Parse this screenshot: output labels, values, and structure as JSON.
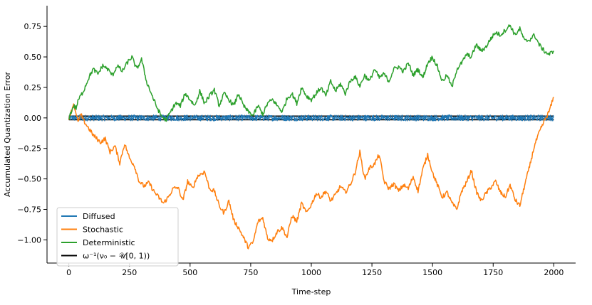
{
  "chart_data": {
    "type": "line",
    "title": "",
    "xlabel": "Time-step",
    "ylabel": "Accumulated Quantization Error",
    "xlim": [
      -90,
      2090
    ],
    "ylim": [
      -1.19,
      0.92
    ],
    "xticks": [
      0,
      250,
      500,
      750,
      1000,
      1250,
      1500,
      1750,
      2000
    ],
    "xtick_labels": [
      "0",
      "250",
      "500",
      "750",
      "1000",
      "1250",
      "1500",
      "1750",
      "2000"
    ],
    "yticks": [
      -1.0,
      -0.75,
      -0.5,
      -0.25,
      0.0,
      0.25,
      0.5,
      0.75
    ],
    "ytick_labels": [
      "−1.00",
      "−0.75",
      "−0.50",
      "−0.25",
      "0.00",
      "0.25",
      "0.50",
      "0.75"
    ],
    "grid": false,
    "legend_position": "lower-left",
    "band_bounds": [
      -0.015,
      0.015
    ],
    "series": [
      {
        "name": "Diffused",
        "color": "#1f77b4",
        "style": "noise-band",
        "x": [
          0,
          2000
        ],
        "amplitude": 0.025
      },
      {
        "name": "Stochastic",
        "color": "#ff7f0e",
        "style": "line",
        "x": [
          0,
          10,
          20,
          30,
          40,
          50,
          60,
          80,
          100,
          130,
          150,
          170,
          190,
          210,
          230,
          250,
          270,
          290,
          310,
          330,
          350,
          370,
          390,
          410,
          430,
          450,
          470,
          490,
          510,
          530,
          560,
          580,
          600,
          620,
          640,
          660,
          680,
          700,
          720,
          740,
          760,
          780,
          800,
          820,
          840,
          860,
          880,
          900,
          920,
          940,
          960,
          980,
          1000,
          1020,
          1040,
          1060,
          1080,
          1100,
          1120,
          1140,
          1160,
          1180,
          1200,
          1220,
          1240,
          1260,
          1280,
          1300,
          1320,
          1340,
          1360,
          1380,
          1400,
          1420,
          1440,
          1460,
          1480,
          1500,
          1520,
          1540,
          1560,
          1580,
          1600,
          1620,
          1640,
          1660,
          1680,
          1700,
          1720,
          1740,
          1760,
          1780,
          1800,
          1820,
          1840,
          1860,
          1880,
          1900,
          1920,
          1940,
          1960,
          1980,
          2000
        ],
        "y": [
          0.0,
          0.05,
          0.12,
          0.02,
          -0.03,
          0.03,
          -0.02,
          -0.08,
          -0.14,
          -0.2,
          -0.17,
          -0.28,
          -0.23,
          -0.37,
          -0.21,
          -0.33,
          -0.39,
          -0.52,
          -0.56,
          -0.53,
          -0.6,
          -0.65,
          -0.7,
          -0.65,
          -0.58,
          -0.57,
          -0.68,
          -0.52,
          -0.58,
          -0.48,
          -0.44,
          -0.58,
          -0.6,
          -0.72,
          -0.78,
          -0.68,
          -0.84,
          -0.9,
          -0.98,
          -1.06,
          -1.02,
          -0.85,
          -0.82,
          -0.99,
          -1.0,
          -0.93,
          -0.9,
          -0.98,
          -0.8,
          -0.85,
          -0.7,
          -0.78,
          -0.71,
          -0.62,
          -0.65,
          -0.6,
          -0.68,
          -0.63,
          -0.56,
          -0.61,
          -0.55,
          -0.45,
          -0.28,
          -0.5,
          -0.41,
          -0.38,
          -0.3,
          -0.52,
          -0.58,
          -0.54,
          -0.6,
          -0.55,
          -0.58,
          -0.48,
          -0.6,
          -0.42,
          -0.3,
          -0.45,
          -0.55,
          -0.65,
          -0.61,
          -0.7,
          -0.75,
          -0.6,
          -0.53,
          -0.43,
          -0.6,
          -0.68,
          -0.62,
          -0.57,
          -0.52,
          -0.61,
          -0.65,
          -0.55,
          -0.67,
          -0.72,
          -0.55,
          -0.4,
          -0.23,
          -0.12,
          -0.03,
          0.05,
          0.17
        ]
      },
      {
        "name": "Deterministic",
        "color": "#2ca02c",
        "style": "line",
        "x": [
          0,
          10,
          20,
          30,
          40,
          60,
          80,
          100,
          120,
          140,
          160,
          180,
          200,
          220,
          240,
          260,
          280,
          300,
          320,
          340,
          360,
          380,
          400,
          420,
          440,
          460,
          480,
          500,
          520,
          540,
          560,
          580,
          600,
          620,
          640,
          660,
          680,
          700,
          720,
          740,
          760,
          780,
          800,
          820,
          840,
          860,
          880,
          900,
          920,
          940,
          960,
          980,
          1000,
          1020,
          1040,
          1060,
          1080,
          1100,
          1120,
          1140,
          1160,
          1180,
          1200,
          1220,
          1240,
          1260,
          1280,
          1300,
          1320,
          1340,
          1360,
          1380,
          1400,
          1420,
          1440,
          1460,
          1480,
          1500,
          1520,
          1540,
          1560,
          1580,
          1600,
          1620,
          1640,
          1660,
          1680,
          1700,
          1720,
          1740,
          1760,
          1780,
          1800,
          1820,
          1840,
          1860,
          1880,
          1900,
          1920,
          1940,
          1960,
          1980,
          2000
        ],
        "y": [
          0.0,
          0.05,
          0.1,
          0.08,
          0.15,
          0.22,
          0.32,
          0.4,
          0.36,
          0.43,
          0.4,
          0.35,
          0.43,
          0.38,
          0.45,
          0.5,
          0.4,
          0.48,
          0.3,
          0.2,
          0.1,
          0.02,
          -0.02,
          0.05,
          0.12,
          0.1,
          0.2,
          0.15,
          0.1,
          0.22,
          0.12,
          0.18,
          0.23,
          0.1,
          0.2,
          0.15,
          0.1,
          0.2,
          0.1,
          0.05,
          0.02,
          0.1,
          0.03,
          0.12,
          0.15,
          0.1,
          0.05,
          0.16,
          0.2,
          0.12,
          0.25,
          0.18,
          0.15,
          0.2,
          0.25,
          0.18,
          0.3,
          0.22,
          0.28,
          0.2,
          0.3,
          0.34,
          0.26,
          0.35,
          0.3,
          0.4,
          0.33,
          0.36,
          0.3,
          0.4,
          0.42,
          0.38,
          0.45,
          0.35,
          0.4,
          0.33,
          0.45,
          0.5,
          0.42,
          0.3,
          0.35,
          0.25,
          0.4,
          0.45,
          0.52,
          0.5,
          0.6,
          0.55,
          0.58,
          0.65,
          0.7,
          0.68,
          0.72,
          0.76,
          0.68,
          0.73,
          0.63,
          0.64,
          0.68,
          0.6,
          0.55,
          0.52,
          0.55
        ]
      }
    ],
    "legend": [
      {
        "label": "Diffused",
        "color": "#1f77b4"
      },
      {
        "label": "Stochastic",
        "color": "#ff7f0e"
      },
      {
        "label": "Deterministic",
        "color": "#2ca02c"
      },
      {
        "label": "ω⁻¹(ν₀ − 𝒰[0, 1))",
        "color": "#000000"
      }
    ]
  }
}
